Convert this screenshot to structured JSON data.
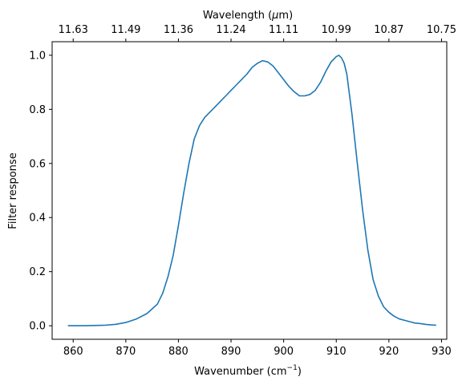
{
  "chart_data": {
    "type": "line",
    "xlabel": "Wavenumber (cm",
    "xlabel_sup": "−1",
    "xlabel_close": ")",
    "ylabel": "Filter response",
    "top_xlabel_prefix": "Wavelength (",
    "top_xlabel_greek": "μ",
    "top_xlabel_suffix": "m)",
    "xlim": [
      856,
      931
    ],
    "ylim": [
      -0.05,
      1.05
    ],
    "grid": false,
    "x_ticks": [
      860,
      870,
      880,
      890,
      900,
      910,
      920,
      930
    ],
    "x_tick_labels": [
      "860",
      "870",
      "880",
      "890",
      "900",
      "910",
      "920",
      "930"
    ],
    "y_ticks": [
      0.0,
      0.2,
      0.4,
      0.6,
      0.8,
      1.0
    ],
    "y_tick_labels": [
      "0.0",
      "0.2",
      "0.4",
      "0.6",
      "0.8",
      "1.0"
    ],
    "top_ticks_at_wavenumber": [
      860,
      870,
      880,
      890,
      900,
      910,
      920,
      930
    ],
    "top_tick_labels": [
      "11.63",
      "11.49",
      "11.36",
      "11.24",
      "11.11",
      "10.99",
      "10.87",
      "10.75"
    ],
    "series": [
      {
        "color": "#1f77b4",
        "x": [
          859,
          862,
          866,
          868,
          870,
          872,
          874,
          876,
          877,
          878,
          879,
          880,
          881,
          882,
          883,
          884,
          885,
          886,
          887,
          888,
          889,
          890,
          891,
          892,
          893,
          894,
          895,
          896,
          897,
          898,
          899,
          900,
          901,
          902,
          903,
          904,
          905,
          906,
          907,
          908,
          909,
          910,
          910.5,
          911,
          911.5,
          912,
          913,
          914,
          915,
          916,
          917,
          918,
          919,
          920,
          921,
          922,
          923,
          924,
          925,
          926,
          927,
          928,
          929
        ],
        "y": [
          0.0,
          0.0,
          0.002,
          0.005,
          0.012,
          0.025,
          0.045,
          0.08,
          0.12,
          0.18,
          0.26,
          0.37,
          0.49,
          0.6,
          0.69,
          0.74,
          0.77,
          0.79,
          0.81,
          0.83,
          0.85,
          0.87,
          0.89,
          0.91,
          0.93,
          0.955,
          0.97,
          0.98,
          0.975,
          0.96,
          0.935,
          0.91,
          0.885,
          0.865,
          0.85,
          0.85,
          0.855,
          0.87,
          0.9,
          0.94,
          0.975,
          0.995,
          1.0,
          0.99,
          0.97,
          0.93,
          0.78,
          0.6,
          0.43,
          0.28,
          0.17,
          0.11,
          0.07,
          0.05,
          0.035,
          0.025,
          0.02,
          0.015,
          0.01,
          0.008,
          0.005,
          0.003,
          0.002
        ]
      }
    ]
  }
}
